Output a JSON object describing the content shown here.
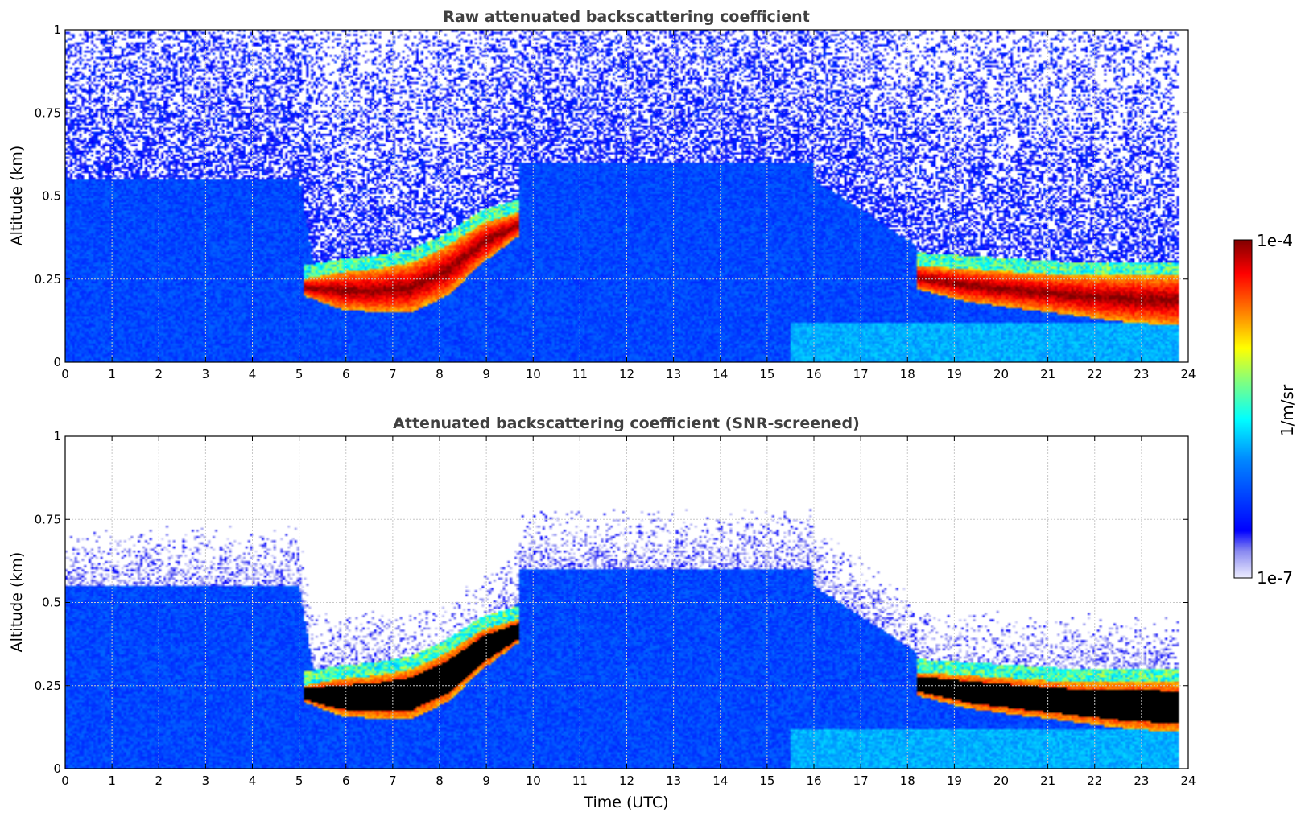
{
  "chart_data": [
    {
      "type": "heatmap",
      "title": "Raw attenuated backscattering coefficient",
      "xlabel": "",
      "ylabel": "Altitude (km)",
      "xlim": [
        0,
        24
      ],
      "ylim": [
        0,
        1
      ],
      "xticks": [
        "0",
        "1",
        "2",
        "3",
        "4",
        "5",
        "6",
        "7",
        "8",
        "9",
        "10",
        "11",
        "12",
        "13",
        "14",
        "15",
        "16",
        "17",
        "18",
        "19",
        "20",
        "21",
        "22",
        "23",
        "24"
      ],
      "yticks": [
        "0",
        "0.25",
        "0.5",
        "0.75",
        "1"
      ],
      "grid": true,
      "data_end_hour": 23.8,
      "layers": [
        {
          "name": "",
          "start_hour": 5.1,
          "end_hour": 9.7,
          "bottom_km": [
            0.2,
            0.16,
            0.15,
            0.15,
            0.2,
            0.3,
            0.38
          ],
          "top_km": [
            0.25,
            0.27,
            0.28,
            0.3,
            0.35,
            0.42,
            0.45
          ]
        },
        {
          "name": "",
          "start_hour": 18.2,
          "end_hour": 23.8,
          "bottom_km": [
            0.22,
            0.18,
            0.16,
            0.14,
            0.12,
            0.11
          ],
          "top_km": [
            0.29,
            0.28,
            0.27,
            0.26,
            0.26,
            0.26
          ]
        }
      ]
    },
    {
      "type": "heatmap",
      "title": "Attenuated backscattering coefficient (SNR-screened)",
      "xlabel": "Time (UTC)",
      "ylabel": "Altitude (km)",
      "xlim": [
        0,
        24
      ],
      "ylim": [
        0,
        1
      ],
      "xticks": [
        "0",
        "1",
        "2",
        "3",
        "4",
        "5",
        "6",
        "7",
        "8",
        "9",
        "10",
        "11",
        "12",
        "13",
        "14",
        "15",
        "16",
        "17",
        "18",
        "19",
        "20",
        "21",
        "22",
        "23",
        "24"
      ],
      "yticks": [
        "0",
        "0.25",
        "0.5",
        "0.75",
        "1"
      ],
      "grid": true,
      "data_end_hour": 23.8,
      "saturated_color": "#000000"
    }
  ],
  "colorbar": {
    "label": "1/m/sr",
    "max_label": "1e-4",
    "min_label": "1e-7",
    "min": 1e-07,
    "max": 0.0001,
    "scale": "log",
    "colormap": "jet"
  },
  "colors": {
    "title_color": "#404040",
    "grid_color": "#c8c8c8"
  }
}
